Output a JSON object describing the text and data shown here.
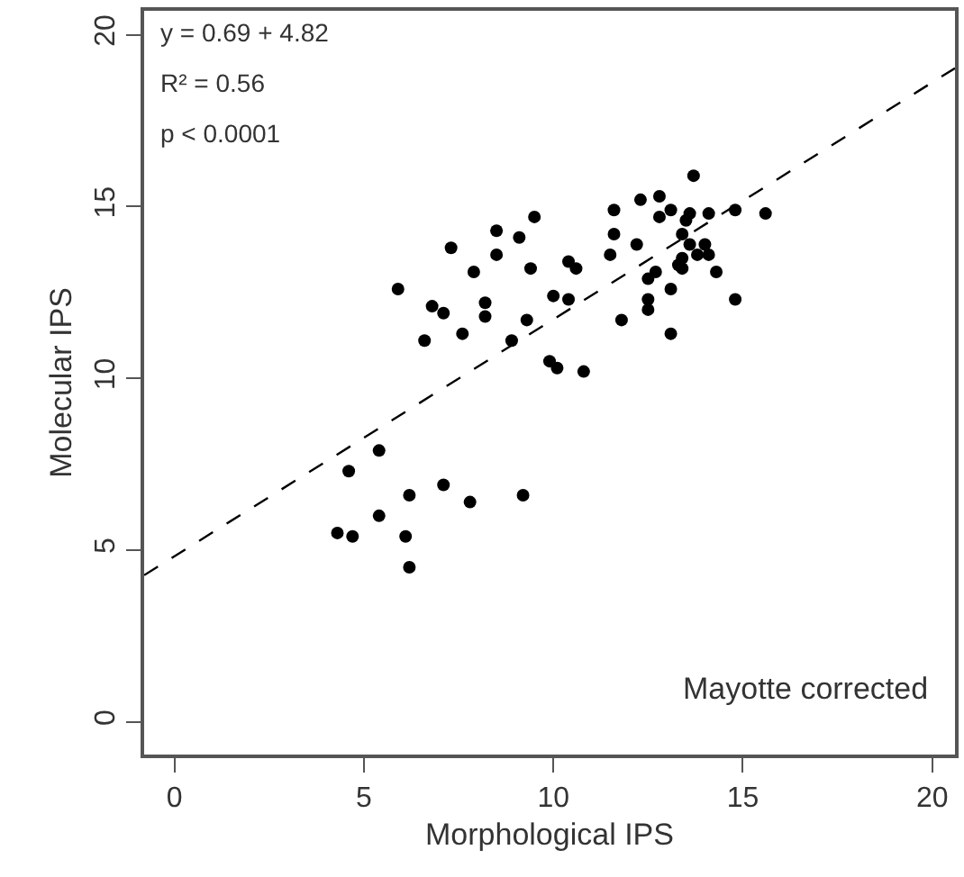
{
  "chart_data": {
    "type": "scatter",
    "xlabel": "Morphological IPS",
    "ylabel": "Molecular IPS",
    "xlim": [
      -0.8,
      20.6
    ],
    "ylim": [
      -0.95,
      20.7
    ],
    "xticks": [
      0,
      5,
      10,
      15,
      20
    ],
    "yticks": [
      0,
      5,
      10,
      15,
      20
    ],
    "grid": false,
    "legend": false,
    "series": [
      {
        "color": "#000000",
        "marker": "circle",
        "x": [
          5.9,
          7.3,
          6.6,
          6.8,
          7.1,
          7.6,
          7.9,
          8.2,
          8.2,
          8.5,
          8.5,
          9.1,
          9.5,
          9.4,
          9.3,
          8.9,
          10.0,
          10.4,
          10.4,
          10.6,
          9.9,
          10.1,
          10.8,
          11.6,
          12.3,
          11.6,
          11.5,
          12.2,
          11.8,
          12.5,
          12.5,
          12.5,
          12.7,
          13.1,
          13.1,
          12.8,
          12.8,
          13.1,
          13.4,
          13.4,
          13.3,
          13.6,
          13.6,
          13.4,
          13.7,
          14.1,
          14.0,
          14.1,
          14.3,
          14.8,
          14.8,
          15.6,
          13.5,
          13.8,
          5.4,
          4.6,
          4.3,
          4.7,
          5.4,
          6.2,
          6.1,
          6.2,
          7.1,
          7.8,
          9.2
        ],
        "values": [
          12.6,
          13.8,
          11.1,
          12.1,
          11.9,
          11.3,
          13.1,
          12.2,
          11.8,
          14.3,
          13.6,
          14.1,
          14.7,
          13.2,
          11.7,
          11.1,
          12.4,
          12.3,
          13.4,
          13.2,
          10.5,
          10.3,
          10.2,
          14.9,
          15.2,
          14.2,
          13.6,
          13.9,
          11.7,
          12.3,
          12.0,
          12.9,
          13.1,
          11.3,
          12.6,
          15.3,
          14.7,
          14.9,
          14.2,
          13.5,
          13.3,
          14.8,
          13.9,
          13.2,
          15.9,
          14.8,
          13.9,
          13.6,
          13.1,
          12.3,
          14.9,
          14.8,
          14.6,
          13.6,
          7.9,
          7.3,
          5.5,
          5.4,
          6.0,
          6.6,
          5.4,
          4.5,
          6.9,
          6.4,
          6.6
        ]
      },
      {
        "type": "line",
        "color": "#000000",
        "line_style": "dashed",
        "x": [
          -0.8,
          20.6
        ],
        "values": [
          4.27,
          19.03
        ]
      }
    ],
    "annotations": [
      "y = 0.69 + 4.82",
      "R² = 0.56",
      "p < 0.0001",
      "Mayotte corrected"
    ]
  }
}
